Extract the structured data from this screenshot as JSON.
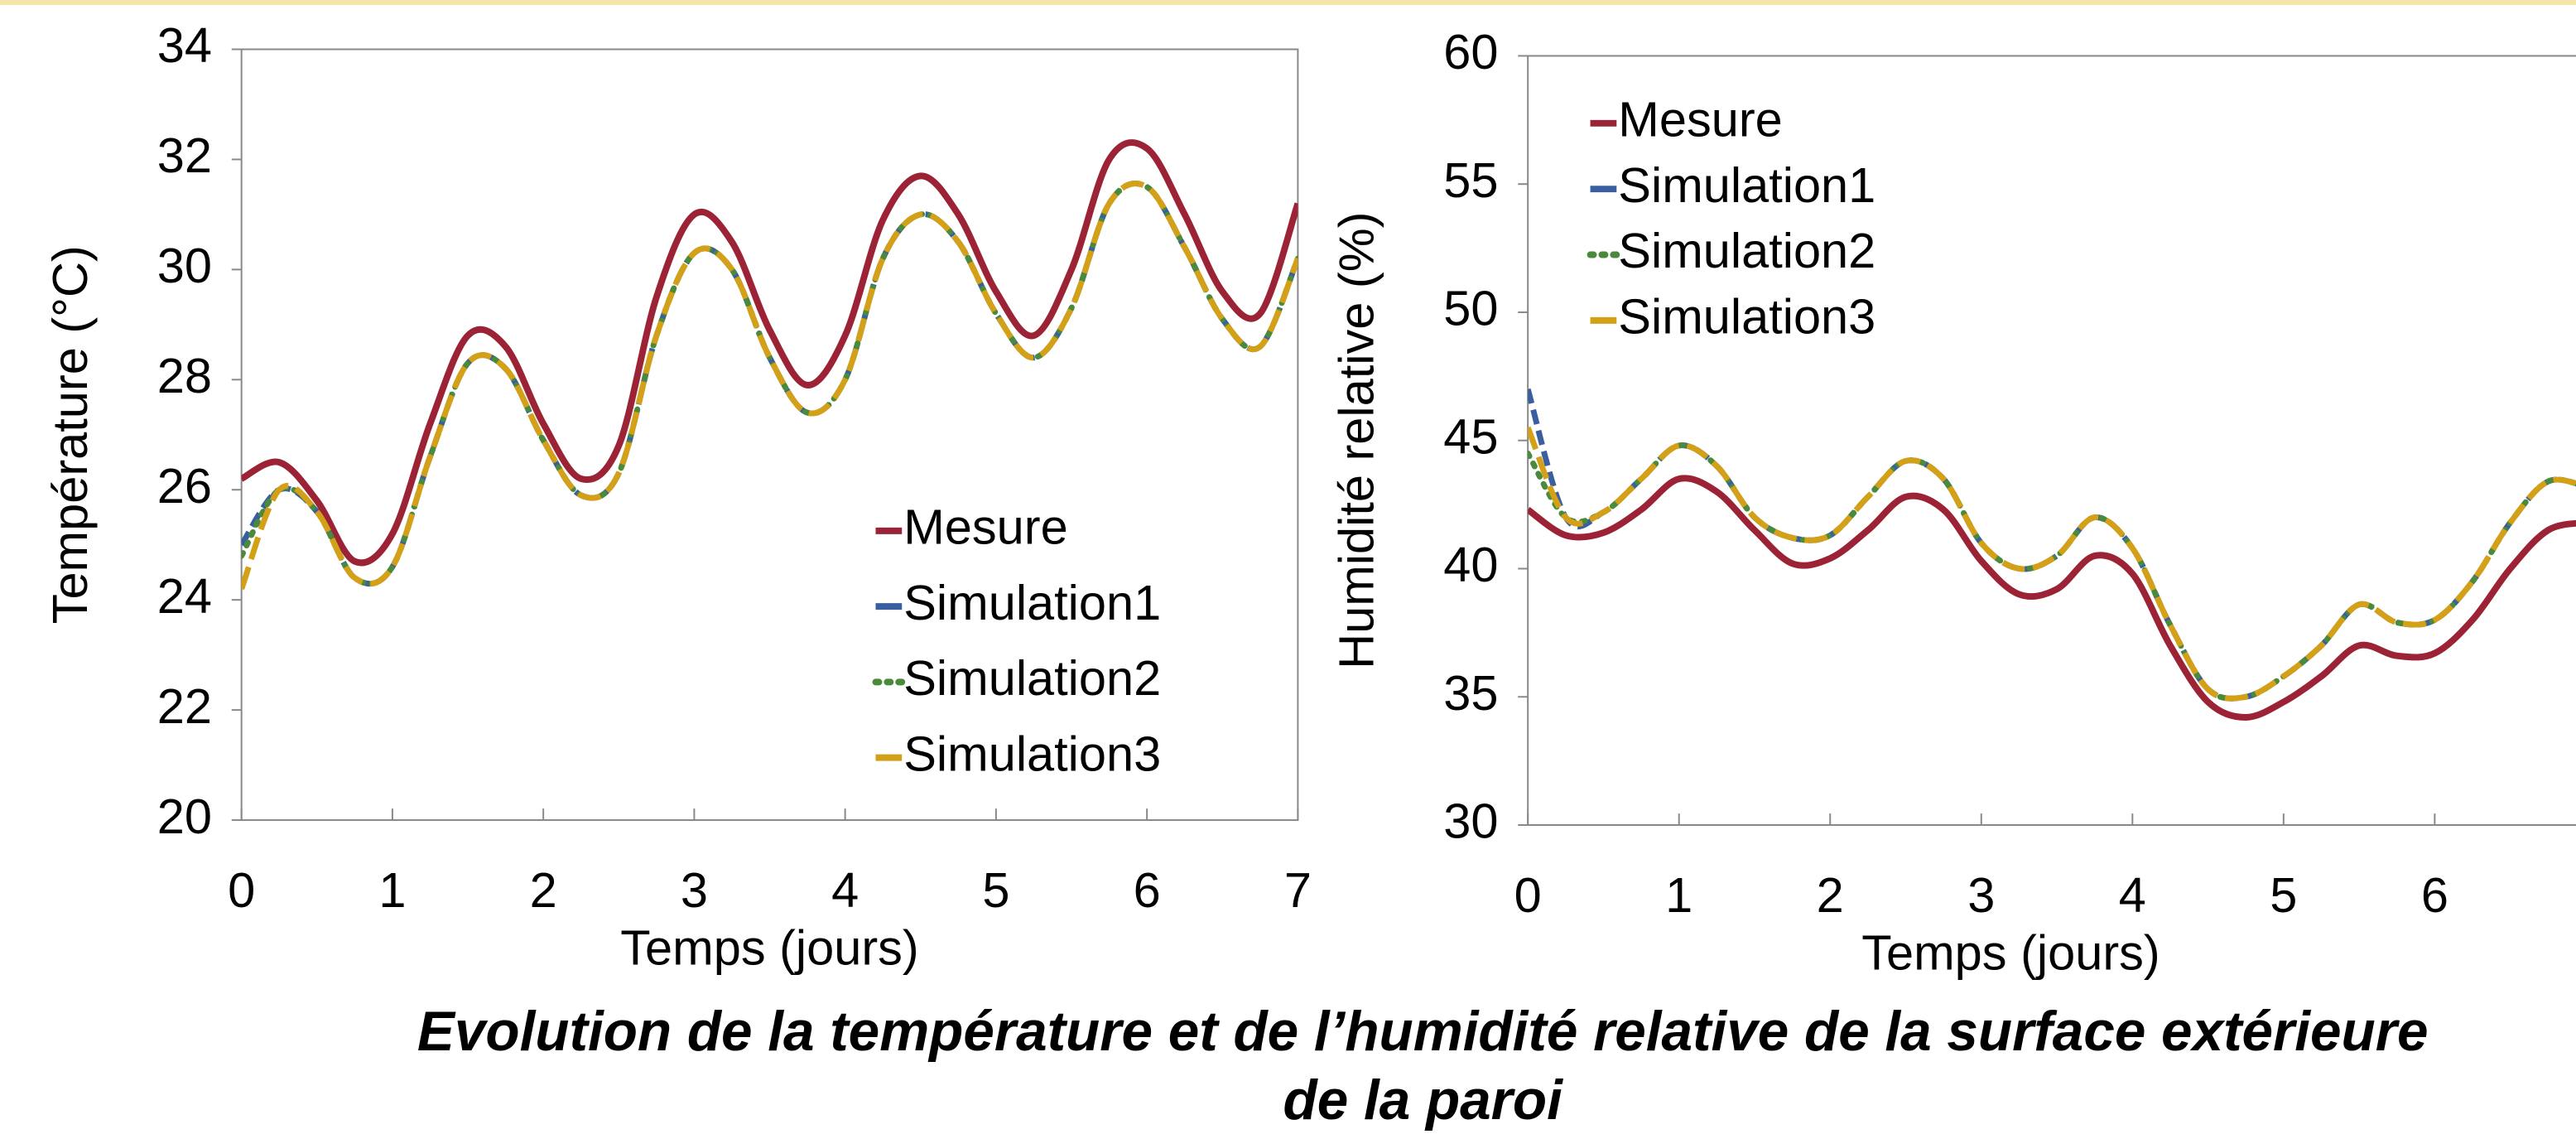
{
  "caption": [
    "Evolution de la température et de l’humidité relative de la surface extérieure",
    "de la paroi"
  ],
  "chart_data": [
    {
      "type": "line",
      "xlabel": "Temps (jours)",
      "ylabel": "Température (°C)",
      "xlim": [
        0,
        7
      ],
      "ylim": [
        20,
        34
      ],
      "xticks": [
        0,
        1,
        2,
        3,
        4,
        5,
        6,
        7
      ],
      "yticks": [
        20,
        22,
        24,
        26,
        28,
        30,
        32,
        34
      ],
      "legend": "center right",
      "x": [
        0,
        0.25,
        0.5,
        0.75,
        1,
        1.25,
        1.5,
        1.75,
        2,
        2.25,
        2.5,
        2.75,
        3,
        3.25,
        3.5,
        3.75,
        4,
        4.25,
        4.5,
        4.75,
        5,
        5.25,
        5.5,
        5.75,
        6,
        6.25,
        6.5,
        6.75,
        7
      ],
      "series": [
        {
          "name": "Mesure",
          "color": "#9b2335",
          "style": "solid",
          "values": [
            26.2,
            26.5,
            25.8,
            24.7,
            25.2,
            27.2,
            28.8,
            28.6,
            27.2,
            26.2,
            26.8,
            29.5,
            31.0,
            30.5,
            28.9,
            27.9,
            28.8,
            30.9,
            31.7,
            31.0,
            29.6,
            28.8,
            30.0,
            32.0,
            32.2,
            31.0,
            29.6,
            29.2,
            31.2
          ]
        },
        {
          "name": "Simulation1",
          "color": "#3a5fa0",
          "style": "dash",
          "values": [
            25.0,
            26.0,
            25.6,
            24.4,
            24.6,
            26.6,
            28.3,
            28.2,
            26.9,
            25.9,
            26.3,
            28.8,
            30.3,
            30.0,
            28.4,
            27.4,
            28.0,
            30.2,
            31.0,
            30.5,
            29.2,
            28.4,
            29.3,
            31.2,
            31.5,
            30.4,
            29.1,
            28.6,
            30.2
          ]
        },
        {
          "name": "Simulation2",
          "color": "#4a8a3a",
          "style": "dot",
          "values": [
            24.8,
            26.0,
            25.6,
            24.4,
            24.6,
            26.6,
            28.3,
            28.2,
            26.9,
            25.9,
            26.3,
            28.8,
            30.3,
            30.0,
            28.4,
            27.4,
            28.0,
            30.2,
            31.0,
            30.5,
            29.2,
            28.4,
            29.3,
            31.2,
            31.5,
            30.4,
            29.1,
            28.6,
            30.2
          ]
        },
        {
          "name": "Simulation3",
          "color": "#d4a017",
          "style": "longdash",
          "values": [
            24.2,
            26.0,
            25.6,
            24.4,
            24.6,
            26.6,
            28.3,
            28.2,
            26.9,
            25.9,
            26.3,
            28.8,
            30.3,
            30.0,
            28.4,
            27.4,
            28.0,
            30.2,
            31.0,
            30.5,
            29.2,
            28.4,
            29.3,
            31.2,
            31.5,
            30.4,
            29.1,
            28.6,
            30.2
          ]
        }
      ]
    },
    {
      "type": "line",
      "xlabel": "Temps (jours)",
      "ylabel": "Humidité relative (%)",
      "xlim": [
        0,
        7
      ],
      "ylim": [
        30,
        60
      ],
      "xticks": [
        0,
        1,
        2,
        3,
        4,
        5,
        6
      ],
      "yticks": [
        30,
        35,
        40,
        45,
        50,
        55,
        60
      ],
      "legend": "upper left",
      "x": [
        0,
        0.25,
        0.5,
        0.75,
        1,
        1.25,
        1.5,
        1.75,
        2,
        2.25,
        2.5,
        2.75,
        3,
        3.25,
        3.5,
        3.75,
        4,
        4.25,
        4.5,
        4.75,
        5,
        5.25,
        5.5,
        5.75,
        6,
        6.25,
        6.5,
        6.75,
        7
      ],
      "series": [
        {
          "name": "Mesure",
          "color": "#9b2335",
          "style": "solid",
          "values": [
            42.3,
            41.3,
            41.4,
            42.3,
            43.5,
            43.0,
            41.5,
            40.2,
            40.4,
            41.5,
            42.8,
            42.3,
            40.3,
            39.0,
            39.2,
            40.5,
            39.8,
            37.0,
            34.8,
            34.2,
            34.8,
            35.8,
            37.0,
            36.6,
            36.7,
            38.0,
            40.0,
            41.5,
            41.8
          ]
        },
        {
          "name": "Simulation1",
          "color": "#3a5fa0",
          "style": "dash",
          "values": [
            47.0,
            42.0,
            42.2,
            43.5,
            44.8,
            44.0,
            42.0,
            41.2,
            41.3,
            42.8,
            44.2,
            43.5,
            41.0,
            40.0,
            40.5,
            42.0,
            40.8,
            37.8,
            35.3,
            35.0,
            35.8,
            37.0,
            38.6,
            37.9,
            38.0,
            39.5,
            41.8,
            43.4,
            43.2
          ]
        },
        {
          "name": "Simulation2",
          "color": "#4a8a3a",
          "style": "dot",
          "values": [
            44.5,
            42.0,
            42.2,
            43.5,
            44.8,
            44.0,
            42.0,
            41.2,
            41.3,
            42.8,
            44.2,
            43.5,
            41.0,
            40.0,
            40.5,
            42.0,
            40.8,
            37.8,
            35.3,
            35.0,
            35.8,
            37.0,
            38.6,
            37.9,
            38.0,
            39.5,
            41.8,
            43.4,
            43.2
          ]
        },
        {
          "name": "Simulation3",
          "color": "#d4a017",
          "style": "longdash",
          "values": [
            45.5,
            42.0,
            42.2,
            43.5,
            44.8,
            44.0,
            42.0,
            41.2,
            41.3,
            42.8,
            44.2,
            43.5,
            41.0,
            40.0,
            40.5,
            42.0,
            40.8,
            37.8,
            35.3,
            35.0,
            35.8,
            37.0,
            38.6,
            37.9,
            38.0,
            39.5,
            41.8,
            43.4,
            43.2
          ]
        }
      ]
    }
  ]
}
